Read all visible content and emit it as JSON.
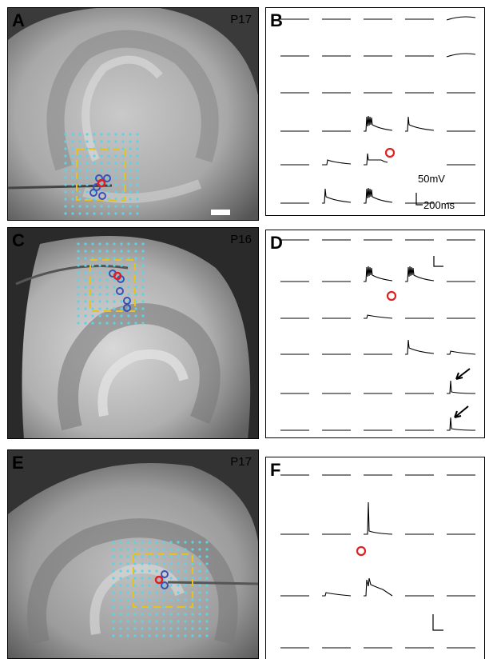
{
  "panels": [
    {
      "letter": "A",
      "age": "P17"
    },
    {
      "letter": "B"
    },
    {
      "letter": "C",
      "age": "P16"
    },
    {
      "letter": "D"
    },
    {
      "letter": "E",
      "age": "P17"
    },
    {
      "letter": "F"
    }
  ],
  "scalebar": {
    "voltage": "50mV",
    "time": "200ms"
  },
  "colors": {
    "grid_dot": "#5fd3e6",
    "roi_box": "#e8c21a",
    "responding_site": "#3a4fb8",
    "stim_site": "#e02020",
    "trace": "#000000"
  },
  "icons": [
    "red-circle-stimulation-site",
    "blue-circle-responding-site",
    "arrow-icon",
    "scalebar-icon"
  ]
}
